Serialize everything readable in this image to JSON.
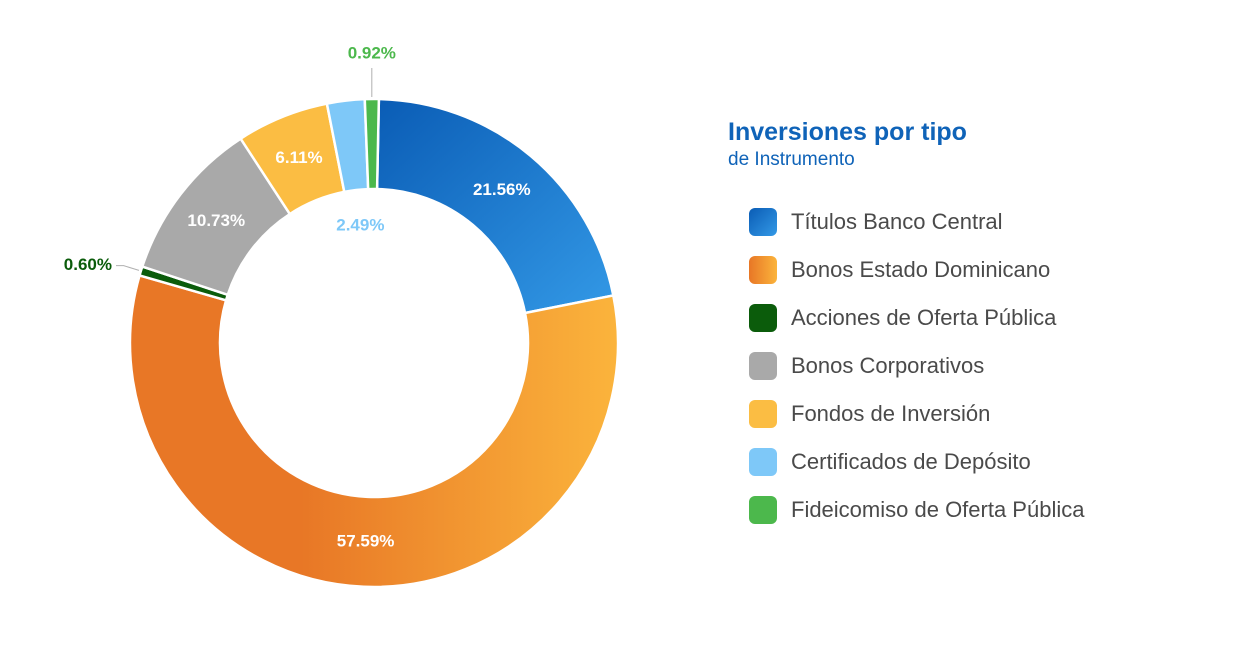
{
  "chart_data": {
    "type": "pie",
    "title": "Inversiones por tipo",
    "subtitle": "de Instrumento",
    "categories": [
      "Títulos Banco Central",
      "Bonos Estado Dominicano",
      "Acciones de Oferta Pública",
      "Bonos Corporativos",
      "Fondos de Inversión",
      "Certificados de Depósito",
      "Fideicomiso de Oferta Pública"
    ],
    "values": [
      21.56,
      57.59,
      0.6,
      10.73,
      6.11,
      2.49,
      0.92
    ],
    "data_labels": [
      "21.56%",
      "57.59%",
      "0.60%",
      "10.73%",
      "6.11%",
      "2.49%",
      "0.92%"
    ],
    "colors": [
      "#1a73c8",
      "#f2a03a",
      "#0b5c0b",
      "#a9a9a9",
      "#fbbd43",
      "#7ec8f8",
      "#4cb84c"
    ],
    "label_colors": [
      "#ffffff",
      "#ffffff",
      "#0b5c0b",
      "#ffffff",
      "#ffffff",
      "#7ec8f8",
      "#4cb84c"
    ],
    "legend_position": "right",
    "donut": true
  }
}
